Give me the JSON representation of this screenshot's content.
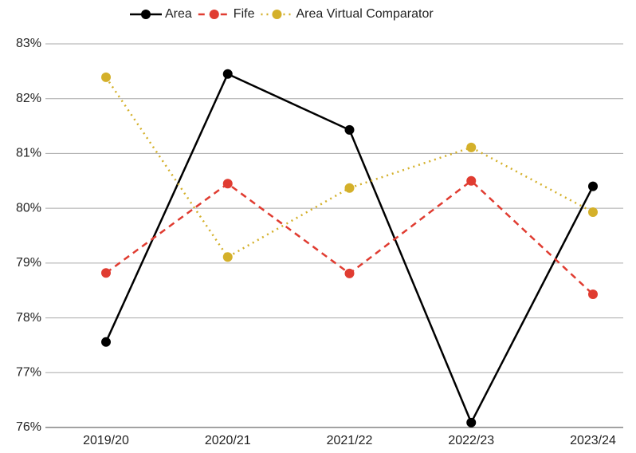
{
  "chart_data": {
    "type": "line",
    "categories": [
      "2019/20",
      "2020/21",
      "2021/22",
      "2022/23",
      "2023/24"
    ],
    "series": [
      {
        "name": "Area",
        "color": "#000000",
        "dash": "solid",
        "values": [
          77.56,
          82.45,
          81.43,
          76.09,
          80.4
        ]
      },
      {
        "name": "Fife",
        "color": "#e03c31",
        "dash": "dashed",
        "values": [
          78.82,
          80.45,
          78.81,
          80.5,
          78.43
        ]
      },
      {
        "name": "Area Virtual Comparator",
        "color": "#d4b02a",
        "dash": "dotted",
        "values": [
          82.39,
          79.11,
          80.37,
          81.11,
          79.93
        ]
      }
    ],
    "ylim": [
      76,
      83
    ],
    "yticks": [
      {
        "value": 76,
        "label": "76%"
      },
      {
        "value": 77,
        "label": "77%"
      },
      {
        "value": 78,
        "label": "78%"
      },
      {
        "value": 79,
        "label": "79%"
      },
      {
        "value": 80,
        "label": "80%"
      },
      {
        "value": 81,
        "label": "81%"
      },
      {
        "value": 82,
        "label": "82%"
      },
      {
        "value": 83,
        "label": "83%"
      }
    ],
    "grid": true,
    "legend": "top"
  }
}
